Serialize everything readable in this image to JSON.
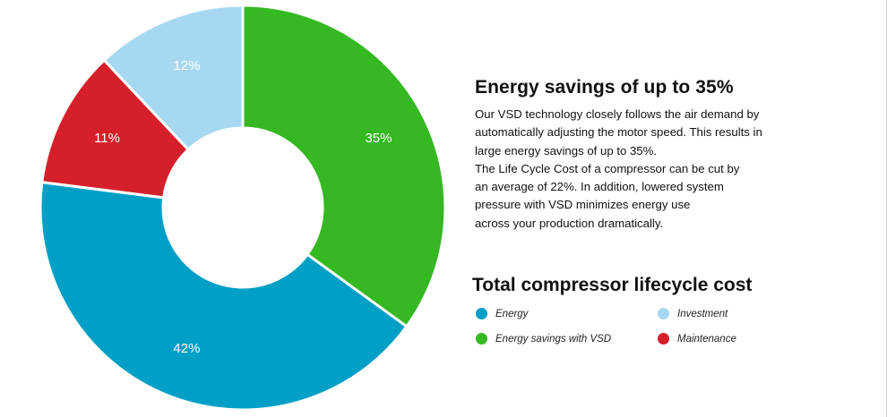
{
  "chart_data": {
    "type": "pie",
    "variant": "donut",
    "title": "Total compressor lifecycle cost",
    "legend_position": "right",
    "slices": [
      {
        "name": "Energy savings with VSD",
        "value": 35,
        "label": "35%",
        "color": "#35b822"
      },
      {
        "name": "Energy",
        "value": 42,
        "label": "42%",
        "color": "#00a0c6"
      },
      {
        "name": "Maintenance",
        "value": 11,
        "label": "11%",
        "color": "#d5202b"
      },
      {
        "name": "Investment",
        "value": 12,
        "label": "12%",
        "color": "#a6d9f1"
      }
    ]
  },
  "info": {
    "title": "Energy savings of up to 35%",
    "lines": [
      "Our VSD technology closely follows the air demand by",
      "automatically adjusting the motor speed. This results in",
      "large energy savings of up to 35%.",
      "The Life Cycle Cost of a compressor can be cut by",
      "an average of 22%. In addition, lowered system",
      "pressure with VSD minimizes energy use",
      "across your production dramatically."
    ]
  },
  "legend": {
    "items": [
      {
        "label": "Energy",
        "color": "#00a0c6"
      },
      {
        "label": "Investment",
        "color": "#a6d9f1"
      },
      {
        "label": "Energy savings with VSD",
        "color": "#35b822"
      },
      {
        "label": "Maintenance",
        "color": "#d5202b"
      }
    ]
  }
}
